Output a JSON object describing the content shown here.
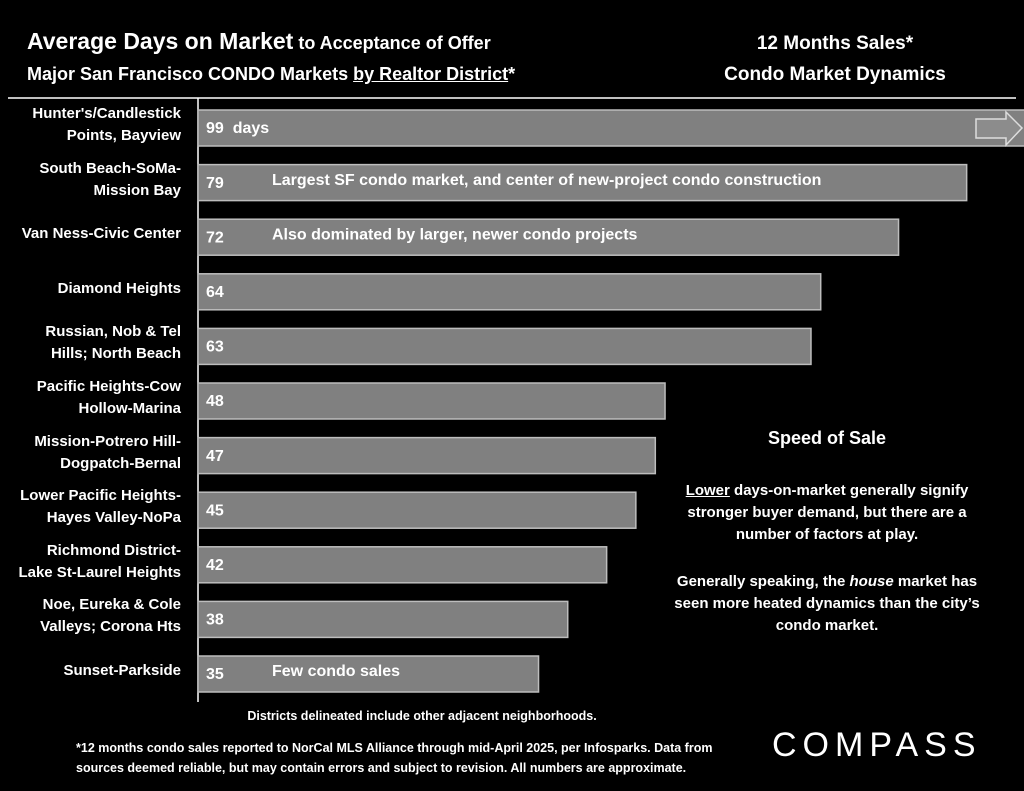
{
  "chart_data": {
    "type": "bar",
    "orientation": "horizontal",
    "title_parts": [
      "Average Days on Market",
      " to Acceptance of Offer"
    ],
    "subtitle_parts": [
      "Major San Francisco CONDO Markets ",
      "by Realtor District",
      "*"
    ],
    "categories": [
      "Hunter's/Candlestick\nPoints, Bayview",
      "South Beach-SoMa-\nMission Bay",
      "Van Ness-Civic Center",
      "Diamond Heights",
      "Russian, Nob & Tel\nHills; North Beach",
      "Pacific Heights-Cow\nHollow-Marina",
      "Mission-Potrero Hill-\nDogpatch-Bernal",
      "Lower Pacific Heights-\nHayes Valley-NoPa",
      "Richmond District-\nLake St-Laurel Heights",
      "Noe, Eureka & Cole\nValleys; Corona Hts",
      "Sunset-Parkside"
    ],
    "values": [
      99,
      79,
      72,
      64,
      63,
      48,
      47,
      45,
      42,
      38,
      35
    ],
    "value_labels": [
      "99  days",
      "79",
      "72",
      "64",
      "63",
      "48",
      "47",
      "45",
      "42",
      "38",
      "35"
    ],
    "bar_notes": [
      null,
      "Largest SF condo market, and center of new-project condo construction",
      "Also dominated by larger, newer condo projects",
      null,
      null,
      null,
      null,
      null,
      null,
      null,
      "Few condo sales"
    ],
    "color": "#808080",
    "side_header": [
      "12 Months Sales*",
      "Condo Market Dynamics"
    ],
    "side_title": "Speed of Sale",
    "side_paragraph_1": [
      "Lower",
      " days-on-market generally signify stronger buyer demand, but there are a number of factors at play."
    ],
    "side_paragraph_2": [
      "Generally speaking, the ",
      "house",
      " market has seen more heated dynamics than the city’s condo market."
    ],
    "note": "Districts delineated include other adjacent neighborhoods.",
    "footnote": "*12 months condo sales reported to NorCal MLS Alliance through mid-April 2025, per Infosparks. Data from\nsources deemed reliable, but may contain errors and subject to revision. All numbers are approximate.",
    "logo": "COMPASS"
  }
}
